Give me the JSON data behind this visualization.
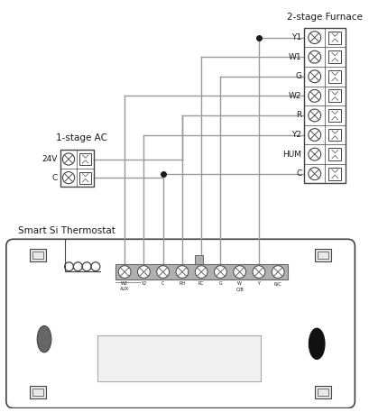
{
  "bg_color": "#ffffff",
  "wire_color": "#999999",
  "dark_color": "#1a1a1a",
  "edge_color": "#444444",
  "title_furnace": "2-stage Furnace",
  "title_left": "1-stage AC",
  "title_thermo": "Smart Si Thermostat",
  "furnace_labels": [
    "Y1",
    "W1",
    "G",
    "W2",
    "R",
    "Y2",
    "HUM",
    "C"
  ],
  "left_labels": [
    "24V",
    "C"
  ],
  "thermo_labels": [
    "W2\nAUX",
    "Y2",
    "C",
    "RH",
    "RC",
    "G",
    "W\nO/B",
    "Y",
    "N/C"
  ],
  "fig_w": 4.1,
  "fig_h": 4.57,
  "dpi": 100
}
